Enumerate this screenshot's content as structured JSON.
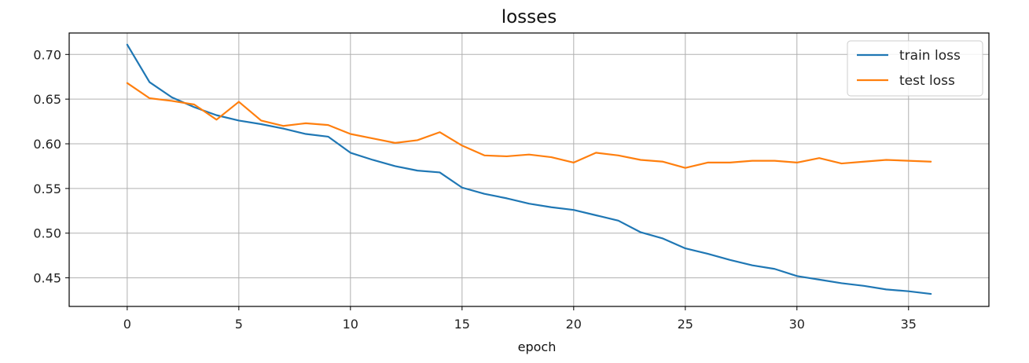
{
  "chart_data": {
    "type": "line",
    "title": "losses",
    "xlabel": "epoch",
    "ylabel": "",
    "xlim": [
      -2.6,
      38.6
    ],
    "ylim": [
      0.418,
      0.724
    ],
    "xticks": [
      0,
      5,
      10,
      15,
      20,
      25,
      30,
      35
    ],
    "yticks": [
      0.45,
      0.5,
      0.55,
      0.6,
      0.65,
      0.7
    ],
    "ytick_labels": [
      "0.45",
      "0.50",
      "0.55",
      "0.60",
      "0.65",
      "0.70"
    ],
    "grid": true,
    "legend_position": "upper right",
    "x": [
      0,
      1,
      2,
      3,
      4,
      5,
      6,
      7,
      8,
      9,
      10,
      11,
      12,
      13,
      14,
      15,
      16,
      17,
      18,
      19,
      20,
      21,
      22,
      23,
      24,
      25,
      26,
      27,
      28,
      29,
      30,
      31,
      32,
      33,
      34,
      35,
      36
    ],
    "series": [
      {
        "name": "train loss",
        "color": "#1f77b4",
        "values": [
          0.711,
          0.669,
          0.652,
          0.641,
          0.632,
          0.626,
          0.622,
          0.617,
          0.611,
          0.608,
          0.59,
          0.582,
          0.575,
          0.57,
          0.568,
          0.551,
          0.544,
          0.539,
          0.533,
          0.529,
          0.526,
          0.52,
          0.514,
          0.501,
          0.494,
          0.483,
          0.477,
          0.47,
          0.464,
          0.46,
          0.452,
          0.448,
          0.444,
          0.441,
          0.437,
          0.435,
          0.432
        ]
      },
      {
        "name": "test loss",
        "color": "#ff7f0e",
        "values": [
          0.668,
          0.651,
          0.648,
          0.644,
          0.627,
          0.647,
          0.626,
          0.62,
          0.623,
          0.621,
          0.611,
          0.606,
          0.601,
          0.604,
          0.613,
          0.598,
          0.587,
          0.586,
          0.588,
          0.585,
          0.579,
          0.59,
          0.587,
          0.582,
          0.58,
          0.573,
          0.579,
          0.579,
          0.581,
          0.581,
          0.579,
          0.584,
          0.578,
          0.58,
          0.582,
          0.581,
          0.58
        ]
      }
    ]
  }
}
